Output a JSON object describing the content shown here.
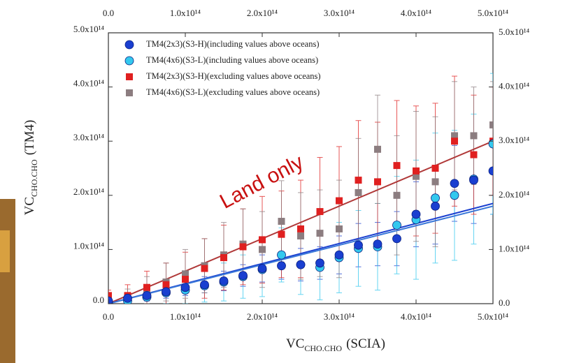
{
  "chart_data": {
    "type": "scatter",
    "x_label": {
      "main": "VC",
      "sub": "CHO.CHO",
      "suffix": "(SCIA)"
    },
    "y_label": {
      "main": "VC",
      "sub": "CHO.CHO",
      "suffix": "(TM4)"
    },
    "annotation": "Land only",
    "xlim": [
      0,
      500000000000000.0
    ],
    "ylim": [
      0,
      500000000000000.0
    ],
    "xticks": [
      {
        "value": 0,
        "label": "0.0"
      },
      {
        "value": 100000000000000.0,
        "label": "1.0x10¹⁴"
      },
      {
        "value": 200000000000000.0,
        "label": "2.0x10¹⁴"
      },
      {
        "value": 300000000000000.0,
        "label": "3.0x10¹⁴"
      },
      {
        "value": 400000000000000.0,
        "label": "4.0x10¹⁴"
      },
      {
        "value": 500000000000000.0,
        "label": "5.0x10¹⁴"
      }
    ],
    "yticks": [
      {
        "value": 0,
        "label": "0.0"
      },
      {
        "value": 100000000000000.0,
        "label": "1.0x10¹⁴"
      },
      {
        "value": 200000000000000.0,
        "label": "2.0x10¹⁴"
      },
      {
        "value": 300000000000000.0,
        "label": "3.0x10¹⁴"
      },
      {
        "value": 400000000000000.0,
        "label": "4.0x10¹⁴"
      },
      {
        "value": 500000000000000.0,
        "label": "5.0x10¹⁴"
      }
    ],
    "legend": "upper left",
    "x": [
      0,
      25000000000000.0,
      50000000000000.0,
      75000000000000.0,
      100000000000000.0,
      125000000000000.0,
      150000000000000.0,
      175000000000000.0,
      200000000000000.0,
      225000000000000.0,
      250000000000000.0,
      275000000000000.0,
      300000000000000.0,
      325000000000000.0,
      350000000000000.0,
      375000000000000.0,
      400000000000000.0,
      425000000000000.0,
      450000000000000.0,
      475000000000000.0,
      500000000000000.0
    ],
    "series": [
      {
        "name": "TM4(2x3)(S3-H)(including values above oceans)",
        "color": "#1a3fd0",
        "marker": "circle",
        "values": [
          5000000000000.0,
          10000000000000.0,
          15000000000000.0,
          22000000000000.0,
          30000000000000.0,
          35000000000000.0,
          42000000000000.0,
          52000000000000.0,
          65000000000000.0,
          70000000000000.0,
          72000000000000.0,
          75000000000000.0,
          90000000000000.0,
          108000000000000.0,
          110000000000000.0,
          120000000000000.0,
          165000000000000.0,
          180000000000000.0,
          222000000000000.0,
          228000000000000.0,
          245000000000000.0
        ],
        "errors": [
          5000000000000.0,
          8000000000000.0,
          10000000000000.0,
          12000000000000.0,
          15000000000000.0,
          15000000000000.0,
          18000000000000.0,
          20000000000000.0,
          25000000000000.0,
          25000000000000.0,
          30000000000000.0,
          30000000000000.0,
          35000000000000.0,
          40000000000000.0,
          40000000000000.0,
          50000000000000.0,
          60000000000000.0,
          70000000000000.0,
          70000000000000.0,
          80000000000000.0,
          80000000000000.0
        ]
      },
      {
        "name": "TM4(4x6)(S3-L)(including values above oceans)",
        "color": "#33c8ee",
        "marker": "circle",
        "values": [
          3000000000000.0,
          5000000000000.0,
          12000000000000.0,
          20000000000000.0,
          25000000000000.0,
          33000000000000.0,
          40000000000000.0,
          50000000000000.0,
          63000000000000.0,
          90000000000000.0,
          72000000000000.0,
          67000000000000.0,
          85000000000000.0,
          102000000000000.0,
          105000000000000.0,
          145000000000000.0,
          155000000000000.0,
          195000000000000.0,
          200000000000000.0,
          230000000000000.0,
          295000000000000.0
        ],
        "errors": [
          5000000000000.0,
          10000000000000.0,
          15000000000000.0,
          20000000000000.0,
          25000000000000.0,
          30000000000000.0,
          35000000000000.0,
          40000000000000.0,
          50000000000000.0,
          50000000000000.0,
          55000000000000.0,
          60000000000000.0,
          65000000000000.0,
          70000000000000.0,
          80000000000000.0,
          90000000000000.0,
          110000000000000.0,
          120000000000000.0,
          120000000000000.0,
          120000000000000.0,
          130000000000000.0
        ]
      },
      {
        "name": "TM4(2x3)(S3-H)(excluding values above oceans)",
        "color": "#e02020",
        "marker": "square",
        "values": [
          15000000000000.0,
          15000000000000.0,
          30000000000000.0,
          35000000000000.0,
          45000000000000.0,
          65000000000000.0,
          85000000000000.0,
          105000000000000.0,
          118000000000000.0,
          128000000000000.0,
          138000000000000.0,
          170000000000000.0,
          190000000000000.0,
          228000000000000.0,
          225000000000000.0,
          255000000000000.0,
          245000000000000.0,
          250000000000000.0,
          300000000000000.0,
          275000000000000.0,
          300000000000000.0
        ],
        "errors": [
          10000000000000.0,
          20000000000000.0,
          30000000000000.0,
          40000000000000.0,
          50000000000000.0,
          55000000000000.0,
          60000000000000.0,
          70000000000000.0,
          80000000000000.0,
          80000000000000.0,
          90000000000000.0,
          100000000000000.0,
          100000000000000.0,
          110000000000000.0,
          110000000000000.0,
          120000000000000.0,
          120000000000000.0,
          120000000000000.0,
          120000000000000.0,
          110000000000000.0,
          100000000000000.0
        ]
      },
      {
        "name": "TM4(4x6)(S3-L)(excluding values above oceans)",
        "color": "#8c7d80",
        "marker": "square",
        "values": [
          10000000000000.0,
          12000000000000.0,
          25000000000000.0,
          40000000000000.0,
          55000000000000.0,
          70000000000000.0,
          90000000000000.0,
          110000000000000.0,
          100000000000000.0,
          152000000000000.0,
          125000000000000.0,
          130000000000000.0,
          138000000000000.0,
          205000000000000.0,
          285000000000000.0,
          200000000000000.0,
          235000000000000.0,
          225000000000000.0,
          310000000000000.0,
          310000000000000.0,
          330000000000000.0
        ],
        "errors": [
          10000000000000.0,
          15000000000000.0,
          25000000000000.0,
          35000000000000.0,
          45000000000000.0,
          50000000000000.0,
          60000000000000.0,
          65000000000000.0,
          70000000000000.0,
          75000000000000.0,
          80000000000000.0,
          80000000000000.0,
          90000000000000.0,
          100000000000000.0,
          100000000000000.0,
          110000000000000.0,
          120000000000000.0,
          120000000000000.0,
          100000000000000.0,
          90000000000000.0,
          80000000000000.0
        ]
      }
    ],
    "fit_lines": [
      {
        "color": "#b03838",
        "y": [
          0,
          300000000000000.0
        ]
      },
      {
        "color": "#1a3fd0",
        "y": [
          0,
          185000000000000.0
        ]
      },
      {
        "color": "#3a78d8",
        "y": [
          0,
          180000000000000.0
        ]
      }
    ]
  }
}
